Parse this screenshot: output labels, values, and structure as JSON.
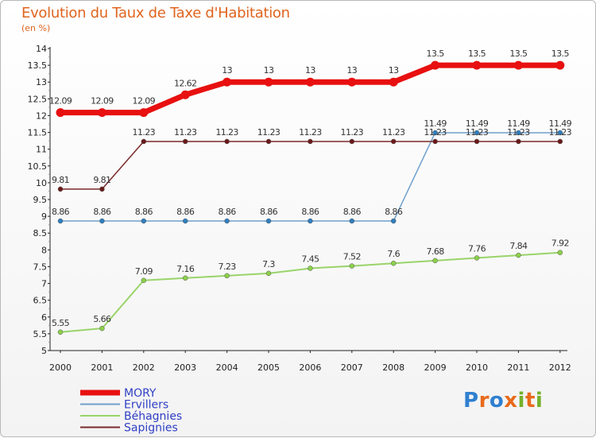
{
  "title": "Evolution du Taux de Taxe d'Habitation",
  "subtitle": "(en %)",
  "logo": {
    "text": "Proxiti",
    "letters": [
      {
        "ch": "P",
        "color": "#2f7fd0"
      },
      {
        "ch": "r",
        "color": "#e86a1a"
      },
      {
        "ch": "o",
        "color": "#2f7fd0"
      },
      {
        "ch": "x",
        "color": "#e86a1a"
      },
      {
        "ch": "i",
        "color": "#74b12a"
      },
      {
        "ch": "t",
        "color": "#e86a1a"
      },
      {
        "ch": "i",
        "color": "#74b12a"
      }
    ]
  },
  "chart_data": {
    "type": "line",
    "title": "Evolution du Taux de Taxe d'Habitation",
    "subtitle": "(en %)",
    "x": [
      2000,
      2001,
      2002,
      2003,
      2004,
      2005,
      2006,
      2007,
      2008,
      2009,
      2010,
      2011,
      2012
    ],
    "ylim": [
      5,
      14
    ],
    "yticks": [
      5,
      5.5,
      6,
      6.5,
      7,
      7.5,
      8,
      8.5,
      9,
      9.5,
      10,
      10.5,
      11,
      11.5,
      12,
      12.5,
      13,
      13.5,
      14
    ],
    "grid": false,
    "legend_position": "bottom-left",
    "series": [
      {
        "name": "MORY",
        "color": "#e81010",
        "values": [
          12.09,
          12.09,
          12.09,
          12.62,
          13,
          13,
          13,
          13,
          13,
          13.5,
          13.5,
          13.5,
          13.5
        ],
        "labels": [
          "12.09",
          "12.09",
          "12.09",
          "12.62",
          "13",
          "13",
          "13",
          "13",
          "13",
          "13.5",
          "13.5",
          "13.5",
          "13.5"
        ]
      },
      {
        "name": "Ervillers",
        "color": "#6fa0cc",
        "values": [
          8.86,
          8.86,
          8.86,
          8.86,
          8.86,
          8.86,
          8.86,
          8.86,
          8.86,
          11.49,
          11.49,
          11.49,
          11.49
        ],
        "labels": [
          "8.86",
          "8.86",
          "8.86",
          "8.86",
          "8.86",
          "8.86",
          "8.86",
          "8.86",
          "8.86",
          "11.49",
          "11.49",
          "11.49",
          "11.49"
        ]
      },
      {
        "name": "Béhagnies",
        "color": "#99d46a",
        "values": [
          5.55,
          5.66,
          7.09,
          7.16,
          7.23,
          7.3,
          7.45,
          7.52,
          7.6,
          7.68,
          7.76,
          7.84,
          7.92
        ],
        "labels": [
          "5.55",
          "5.66",
          "7.09",
          "7.16",
          "7.23",
          "7.3",
          "7.45",
          "7.52",
          "7.6",
          "7.68",
          "7.76",
          "7.84",
          "7.92"
        ]
      },
      {
        "name": "Sapignies",
        "color": "#7a2a2a",
        "values": [
          9.81,
          9.81,
          11.23,
          11.23,
          11.23,
          11.23,
          11.23,
          11.23,
          11.23,
          11.23,
          11.23,
          11.23,
          11.23
        ],
        "labels": [
          "9.81",
          "9.81",
          "11.23",
          "11.23",
          "11.23",
          "11.23",
          "11.23",
          "11.23",
          "11.23",
          "11.23",
          "11.23",
          "11.23",
          "11.23"
        ]
      }
    ]
  }
}
